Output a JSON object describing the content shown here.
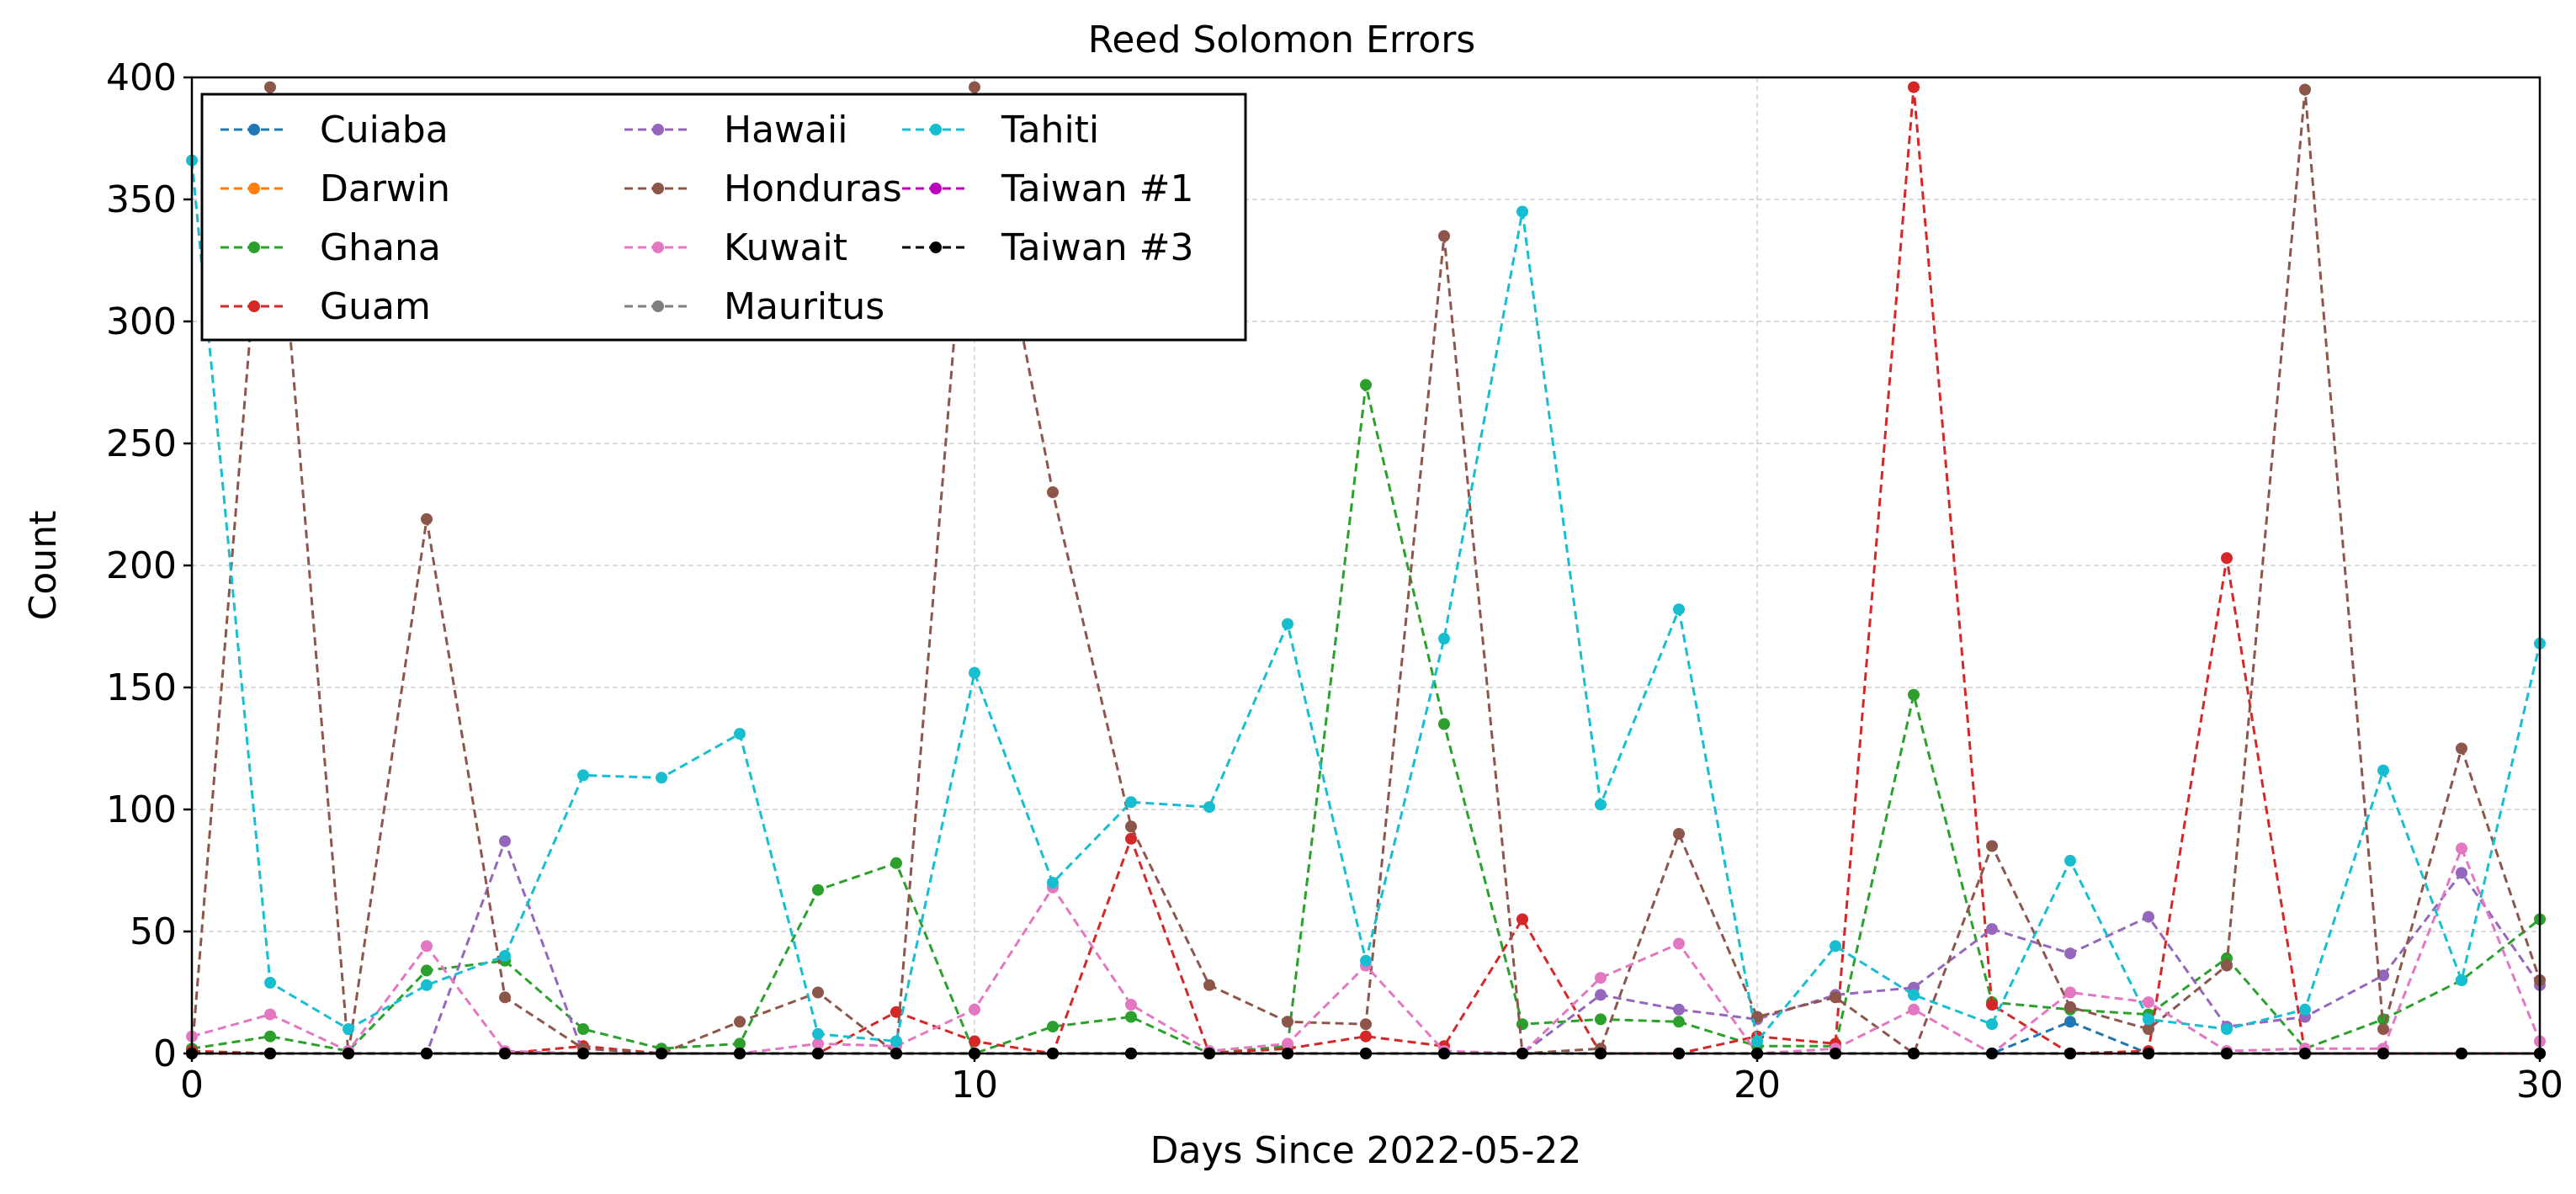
{
  "chart_data": {
    "type": "line",
    "title": "Reed Solomon Errors",
    "xlabel": "Days Since 2022-05-22",
    "ylabel": "Count",
    "xlim": [
      0,
      30
    ],
    "ylim": [
      0,
      400
    ],
    "xticks": [
      0,
      10,
      20,
      30
    ],
    "yticks": [
      0,
      50,
      100,
      150,
      200,
      250,
      300,
      350,
      400
    ],
    "grid": true,
    "line_style": "dashed",
    "legend_position": "top-left",
    "legend_columns": 3,
    "x": [
      0,
      1,
      2,
      3,
      4,
      5,
      6,
      7,
      8,
      9,
      10,
      11,
      12,
      13,
      14,
      15,
      16,
      17,
      18,
      19,
      20,
      21,
      22,
      23,
      24,
      25,
      26,
      27,
      28,
      29,
      30
    ],
    "series": [
      {
        "name": "Cuiaba",
        "color": "#1f77b4",
        "values": [
          0,
          0,
          0,
          0,
          0,
          0,
          0,
          0,
          0,
          0,
          0,
          0,
          0,
          0,
          0,
          0,
          0,
          0,
          0,
          0,
          0,
          0,
          0,
          0,
          13,
          0,
          0,
          0,
          0,
          0,
          0
        ]
      },
      {
        "name": "Darwin",
        "color": "#ff7f0e",
        "values": [
          0,
          0,
          0,
          0,
          0,
          0,
          0,
          0,
          0,
          0,
          0,
          0,
          0,
          0,
          0,
          0,
          0,
          0,
          0,
          0,
          0,
          0,
          0,
          0,
          0,
          0,
          0,
          0,
          0,
          0,
          0
        ]
      },
      {
        "name": "Ghana",
        "color": "#2ca02c",
        "values": [
          2,
          7,
          1,
          34,
          38,
          10,
          2,
          4,
          67,
          78,
          0,
          11,
          15,
          0,
          3,
          274,
          135,
          12,
          14,
          13,
          3,
          3,
          147,
          21,
          18,
          16,
          39,
          2,
          14,
          30,
          55
        ]
      },
      {
        "name": "Guam",
        "color": "#d62728",
        "values": [
          1,
          0,
          0,
          0,
          0,
          3,
          0,
          0,
          0,
          17,
          5,
          0,
          88,
          0,
          2,
          7,
          3,
          55,
          0,
          0,
          7,
          4,
          396,
          20,
          0,
          1,
          203,
          0,
          0,
          0,
          0
        ]
      },
      {
        "name": "Hawaii",
        "color": "#9467bd",
        "values": [
          0,
          0,
          0,
          0,
          87,
          0,
          0,
          0,
          0,
          0,
          0,
          0,
          0,
          0,
          0,
          0,
          0,
          0,
          24,
          18,
          14,
          24,
          27,
          51,
          41,
          56,
          11,
          15,
          32,
          74,
          28
        ]
      },
      {
        "name": "Honduras",
        "color": "#8c564b",
        "values": [
          0,
          396,
          0,
          219,
          23,
          2,
          0,
          13,
          25,
          0,
          396,
          230,
          93,
          28,
          13,
          12,
          335,
          0,
          2,
          90,
          15,
          23,
          0,
          85,
          19,
          10,
          36,
          395,
          10,
          125,
          30
        ]
      },
      {
        "name": "Kuwait",
        "color": "#e377c2",
        "values": [
          7,
          16,
          1,
          44,
          1,
          0,
          0,
          0,
          4,
          3,
          18,
          68,
          20,
          1,
          4,
          36,
          1,
          0,
          31,
          45,
          0,
          2,
          18,
          0,
          25,
          21,
          1,
          2,
          2,
          84,
          5
        ]
      },
      {
        "name": "Mauritus",
        "color": "#7f7f7f",
        "values": [
          0,
          0,
          0,
          0,
          0,
          0,
          0,
          0,
          0,
          0,
          0,
          0,
          0,
          0,
          0,
          0,
          0,
          0,
          0,
          0,
          0,
          0,
          0,
          0,
          0,
          0,
          0,
          0,
          0,
          0,
          0
        ]
      },
      {
        "name": "Tahiti",
        "color": "#17becf",
        "values": [
          366,
          29,
          10,
          28,
          40,
          114,
          113,
          131,
          8,
          5,
          156,
          70,
          103,
          101,
          176,
          38,
          170,
          345,
          102,
          182,
          5,
          44,
          24,
          12,
          79,
          14,
          10,
          18,
          116,
          30,
          168
        ]
      },
      {
        "name": "Taiwan #1",
        "color": "#bf00bf",
        "values": [
          0,
          0,
          0,
          0,
          0,
          0,
          0,
          0,
          0,
          0,
          0,
          0,
          0,
          0,
          0,
          0,
          0,
          0,
          0,
          0,
          0,
          0,
          0,
          0,
          0,
          0,
          0,
          0,
          0,
          0,
          0
        ]
      },
      {
        "name": "Taiwan #3",
        "color": "#000000",
        "values": [
          0,
          0,
          0,
          0,
          0,
          0,
          0,
          0,
          0,
          0,
          0,
          0,
          0,
          0,
          0,
          0,
          0,
          0,
          0,
          0,
          0,
          0,
          0,
          0,
          0,
          0,
          0,
          0,
          0,
          0,
          0
        ]
      }
    ]
  }
}
